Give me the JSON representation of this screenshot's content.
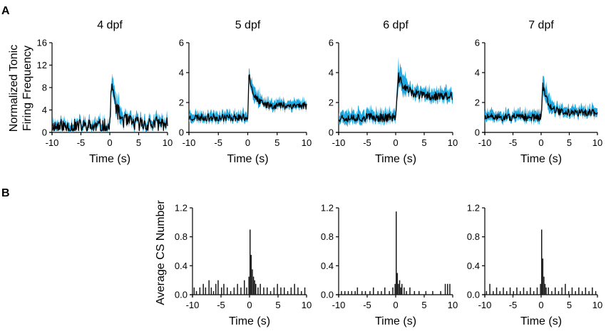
{
  "figure": {
    "panel_a_letter": "A",
    "panel_b_letter": "B",
    "ylabel_a_line1": "Normalized Tonic",
    "ylabel_a_line2": "Firing Frequency",
    "ylabel_b": "Average CS Number",
    "trace_color": "#000000",
    "error_color": "#1fa8df",
    "bar_color": "#1a1a1a"
  },
  "chart_data": [
    {
      "id": "a-4dpf",
      "panel": "A",
      "type": "line",
      "title": "4 dpf",
      "xlabel": "Time (s)",
      "ylabel": "Normalized Tonic Firing Frequency",
      "xlim": [
        -10,
        10
      ],
      "ylim": [
        0,
        16
      ],
      "xticks": [
        "-10",
        "-5",
        "0",
        "5",
        "10"
      ],
      "xtick_values": [
        -10,
        -5,
        0,
        5,
        10
      ],
      "yticks": [
        "0",
        "4",
        "8",
        "12",
        "16"
      ],
      "ytick_values": [
        0,
        4,
        8,
        12,
        16
      ],
      "baseline": 1.0,
      "peak": 9.0,
      "peak_time": 0.3,
      "plateau": 1.5,
      "tau": 0.9,
      "noise": 1.4,
      "sem": 1.0,
      "seed": 11
    },
    {
      "id": "a-5dpf",
      "panel": "A",
      "type": "line",
      "title": "5 dpf",
      "xlabel": "Time (s)",
      "ylabel": "",
      "xlim": [
        -10,
        10
      ],
      "ylim": [
        0,
        6
      ],
      "xticks": [
        "-10",
        "-5",
        "0",
        "5",
        "10"
      ],
      "xtick_values": [
        -10,
        -5,
        0,
        5,
        10
      ],
      "yticks": [
        "0",
        "2",
        "4",
        "6"
      ],
      "ytick_values": [
        0,
        2,
        4,
        6
      ],
      "baseline": 1.0,
      "peak": 4.0,
      "peak_time": 0.2,
      "plateau": 1.8,
      "tau": 0.8,
      "noise": 0.25,
      "sem": 0.35,
      "seed": 23
    },
    {
      "id": "a-6dpf",
      "panel": "A",
      "type": "line",
      "title": "6 dpf",
      "xlabel": "Time (s)",
      "ylabel": "",
      "xlim": [
        -10,
        10
      ],
      "ylim": [
        0,
        6
      ],
      "xticks": [
        "-10",
        "-5",
        "0",
        "5",
        "10"
      ],
      "xtick_values": [
        -10,
        -5,
        0,
        5,
        10
      ],
      "yticks": [
        "0",
        "2",
        "4",
        "6"
      ],
      "ytick_values": [
        0,
        2,
        4,
        6
      ],
      "baseline": 1.0,
      "peak": 3.7,
      "peak_time": 0.5,
      "plateau": 2.4,
      "tau": 1.5,
      "noise": 0.3,
      "sem": 0.45,
      "seed": 37
    },
    {
      "id": "a-7dpf",
      "panel": "A",
      "type": "line",
      "title": "7 dpf",
      "xlabel": "Time (s)",
      "ylabel": "",
      "xlim": [
        -10,
        10
      ],
      "ylim": [
        0,
        6
      ],
      "xticks": [
        "-10",
        "-5",
        "0",
        "5",
        "10"
      ],
      "xtick_values": [
        -10,
        -5,
        0,
        5,
        10
      ],
      "yticks": [
        "0",
        "2",
        "4",
        "6"
      ],
      "ytick_values": [
        0,
        2,
        4,
        6
      ],
      "baseline": 1.0,
      "peak": 3.2,
      "peak_time": 0.3,
      "plateau": 1.3,
      "tau": 1.0,
      "noise": 0.25,
      "sem": 0.4,
      "seed": 51
    },
    {
      "id": "b-5dpf",
      "panel": "B",
      "type": "bar",
      "title": "",
      "xlabel": "Time (s)",
      "ylabel": "Average CS Number",
      "xlim": [
        -10,
        10
      ],
      "ylim": [
        0,
        1.2
      ],
      "bin_width": 0.2,
      "xticks": [
        "-10",
        "-5",
        "0",
        "5",
        "10"
      ],
      "xtick_values": [
        -10,
        -5,
        0,
        5,
        10
      ],
      "yticks": [
        "0.0",
        "0.4",
        "0.8",
        "1.2"
      ],
      "ytick_values": [
        0,
        0.4,
        0.8,
        1.2
      ],
      "bins": [
        [
          -9.8,
          0.1
        ],
        [
          -9.4,
          0.05
        ],
        [
          -8.8,
          0.1
        ],
        [
          -8.2,
          0.15
        ],
        [
          -7.8,
          0.1
        ],
        [
          -7.2,
          0.2
        ],
        [
          -6.8,
          0.1
        ],
        [
          -6.4,
          0.05
        ],
        [
          -6.0,
          0.15
        ],
        [
          -5.6,
          0.2
        ],
        [
          -5.0,
          0.1
        ],
        [
          -4.6,
          0.15
        ],
        [
          -4.0,
          0.1
        ],
        [
          -3.4,
          0.05
        ],
        [
          -2.8,
          0.1
        ],
        [
          -2.2,
          0.15
        ],
        [
          -1.6,
          0.1
        ],
        [
          -1.0,
          0.2
        ],
        [
          -0.6,
          0.1
        ],
        [
          -0.2,
          0.25
        ],
        [
          0.0,
          0.9
        ],
        [
          0.2,
          0.55
        ],
        [
          0.4,
          0.35
        ],
        [
          0.6,
          0.25
        ],
        [
          0.8,
          0.2
        ],
        [
          1.0,
          0.15
        ],
        [
          1.4,
          0.1
        ],
        [
          1.8,
          0.15
        ],
        [
          2.4,
          0.1
        ],
        [
          3.0,
          0.1
        ],
        [
          3.6,
          0.05
        ],
        [
          4.2,
          0.1
        ],
        [
          4.8,
          0.15
        ],
        [
          5.4,
          0.1
        ],
        [
          6.0,
          0.1
        ],
        [
          6.6,
          0.05
        ],
        [
          7.2,
          0.1
        ],
        [
          7.8,
          0.15
        ],
        [
          8.4,
          0.1
        ],
        [
          9.0,
          0.05
        ],
        [
          9.6,
          0.1
        ]
      ]
    },
    {
      "id": "b-6dpf",
      "panel": "B",
      "type": "bar",
      "title": "",
      "xlabel": "Time (s)",
      "ylabel": "",
      "xlim": [
        -10,
        10
      ],
      "ylim": [
        0,
        1.2
      ],
      "bin_width": 0.2,
      "xticks": [
        "-10",
        "-5",
        "0",
        "5",
        "10"
      ],
      "xtick_values": [
        -10,
        -5,
        0,
        5,
        10
      ],
      "yticks": [
        "0.0",
        "0.4",
        "0.8",
        "1.2"
      ],
      "ytick_values": [
        0,
        0.4,
        0.8,
        1.2
      ],
      "bins": [
        [
          -9.6,
          0.05
        ],
        [
          -9.0,
          0.05
        ],
        [
          -8.4,
          0.05
        ],
        [
          -7.8,
          0.05
        ],
        [
          -7.2,
          0.05
        ],
        [
          -6.8,
          0.1
        ],
        [
          -6.0,
          0.05
        ],
        [
          -5.4,
          0.05
        ],
        [
          -4.6,
          0.05
        ],
        [
          -4.0,
          0.1
        ],
        [
          -3.2,
          0.05
        ],
        [
          -2.6,
          0.05
        ],
        [
          -2.0,
          0.1
        ],
        [
          -1.2,
          0.05
        ],
        [
          -0.6,
          0.1
        ],
        [
          -0.2,
          0.15
        ],
        [
          0.0,
          1.15
        ],
        [
          0.2,
          0.3
        ],
        [
          0.4,
          0.15
        ],
        [
          0.6,
          0.2
        ],
        [
          0.8,
          0.1
        ],
        [
          1.0,
          0.15
        ],
        [
          1.4,
          0.1
        ],
        [
          1.8,
          0.05
        ],
        [
          2.4,
          0.1
        ],
        [
          3.2,
          0.05
        ],
        [
          4.0,
          0.05
        ],
        [
          5.2,
          0.05
        ],
        [
          6.4,
          0.05
        ],
        [
          7.8,
          0.05
        ],
        [
          8.6,
          0.15
        ],
        [
          9.0,
          0.15
        ],
        [
          9.4,
          0.15
        ]
      ]
    },
    {
      "id": "b-7dpf",
      "panel": "B",
      "type": "bar",
      "title": "",
      "xlabel": "Time (s)",
      "ylabel": "",
      "xlim": [
        -10,
        10
      ],
      "ylim": [
        0,
        1.2
      ],
      "bin_width": 0.2,
      "xticks": [
        "-10",
        "-5",
        "0",
        "5",
        "10"
      ],
      "xtick_values": [
        -10,
        -5,
        0,
        5,
        10
      ],
      "yticks": [
        "0.0",
        "0.4",
        "0.8",
        "1.2"
      ],
      "ytick_values": [
        0,
        0.4,
        0.8,
        1.2
      ],
      "bins": [
        [
          -9.8,
          0.05
        ],
        [
          -9.2,
          0.15
        ],
        [
          -8.6,
          0.05
        ],
        [
          -8.0,
          0.1
        ],
        [
          -7.4,
          0.05
        ],
        [
          -6.8,
          0.1
        ],
        [
          -6.2,
          0.05
        ],
        [
          -5.6,
          0.1
        ],
        [
          -5.0,
          0.05
        ],
        [
          -4.4,
          0.1
        ],
        [
          -3.8,
          0.05
        ],
        [
          -3.2,
          0.1
        ],
        [
          -2.6,
          0.05
        ],
        [
          -2.0,
          0.1
        ],
        [
          -1.4,
          0.05
        ],
        [
          -0.8,
          0.1
        ],
        [
          -0.2,
          0.15
        ],
        [
          0.0,
          0.9
        ],
        [
          0.2,
          0.5
        ],
        [
          0.4,
          0.25
        ],
        [
          0.6,
          0.15
        ],
        [
          0.8,
          0.1
        ],
        [
          1.2,
          0.1
        ],
        [
          1.8,
          0.05
        ],
        [
          2.4,
          0.1
        ],
        [
          3.0,
          0.05
        ],
        [
          3.6,
          0.1
        ],
        [
          4.2,
          0.15
        ],
        [
          4.8,
          0.05
        ],
        [
          5.4,
          0.1
        ],
        [
          6.0,
          0.05
        ],
        [
          6.6,
          0.1
        ],
        [
          7.2,
          0.05
        ],
        [
          7.8,
          0.1
        ],
        [
          8.4,
          0.05
        ],
        [
          9.0,
          0.1
        ],
        [
          9.6,
          0.05
        ]
      ]
    }
  ]
}
